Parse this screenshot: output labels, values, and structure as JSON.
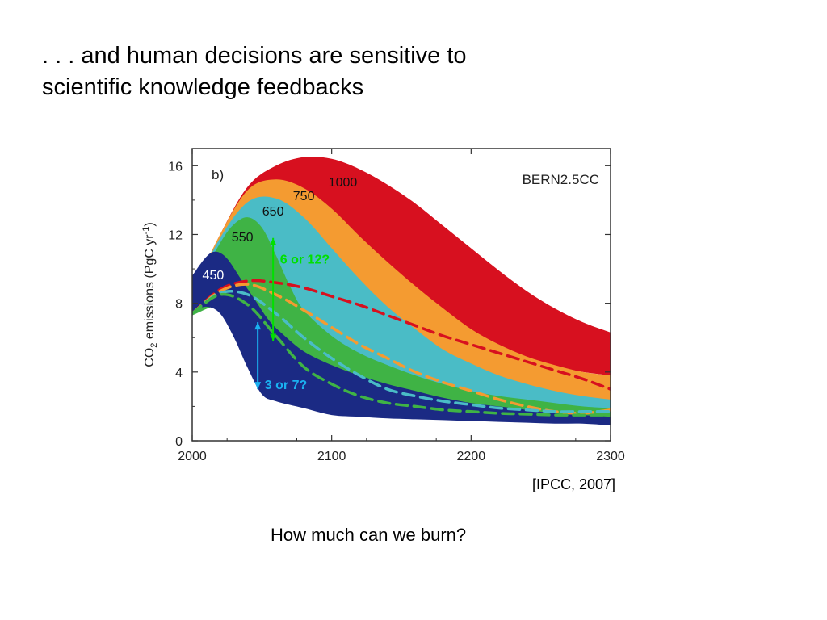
{
  "slide": {
    "title_lines": [
      ". . . and human decisions are sensitive to",
      "scientific knowledge feedbacks"
    ],
    "citation": "[IPCC, 2007]",
    "question": "How much can we burn?"
  },
  "chart_data": {
    "type": "area",
    "panel_label": "b)",
    "model_label": "BERN2.5CC",
    "ylabel_main": "CO",
    "ylabel_sub": "2",
    "ylabel_rest": " emissions (PgC yr",
    "ylabel_sup": "-1",
    "ylabel_end": ")",
    "xlim": [
      2000,
      2300
    ],
    "ylim": [
      0,
      17
    ],
    "x_ticks": [
      2000,
      2100,
      2200,
      2300
    ],
    "y_ticks": [
      0,
      4,
      8,
      12,
      16
    ],
    "x_tick_labels": [
      "2000",
      "2100",
      "2200",
      "2300"
    ],
    "y_tick_labels": [
      "0",
      "4",
      "8",
      "12",
      "16"
    ],
    "series": [
      {
        "name": "1000",
        "color": "#d7101f",
        "label_at": [
          2108,
          14.8
        ],
        "upper": [
          [
            2000,
            8.6
          ],
          [
            2020,
            12.0
          ],
          [
            2040,
            14.8
          ],
          [
            2060,
            16.0
          ],
          [
            2080,
            16.5
          ],
          [
            2100,
            16.4
          ],
          [
            2120,
            15.8
          ],
          [
            2140,
            14.9
          ],
          [
            2160,
            13.8
          ],
          [
            2180,
            12.5
          ],
          [
            2200,
            11.2
          ],
          [
            2220,
            9.9
          ],
          [
            2240,
            8.7
          ],
          [
            2260,
            7.7
          ],
          [
            2280,
            6.9
          ],
          [
            2300,
            6.3
          ]
        ],
        "lower": [
          [
            2000,
            7.3
          ],
          [
            2020,
            8.2
          ],
          [
            2040,
            9.0
          ],
          [
            2060,
            9.3
          ],
          [
            2080,
            8.8
          ],
          [
            2100,
            8.3
          ],
          [
            2120,
            7.9
          ],
          [
            2140,
            7.3
          ],
          [
            2160,
            6.7
          ],
          [
            2180,
            6.2
          ],
          [
            2200,
            5.7
          ],
          [
            2220,
            5.3
          ],
          [
            2240,
            4.8
          ],
          [
            2260,
            4.3
          ],
          [
            2280,
            4.0
          ],
          [
            2300,
            3.8
          ]
        ]
      },
      {
        "name": "750",
        "color": "#f49b31",
        "label_at": [
          2080,
          14.0
        ],
        "upper": [
          [
            2000,
            8.6
          ],
          [
            2020,
            12.0
          ],
          [
            2040,
            14.6
          ],
          [
            2060,
            15.2
          ],
          [
            2080,
            14.7
          ],
          [
            2100,
            13.5
          ],
          [
            2120,
            11.9
          ],
          [
            2140,
            10.4
          ],
          [
            2160,
            9.0
          ],
          [
            2180,
            7.7
          ],
          [
            2200,
            6.5
          ],
          [
            2220,
            5.6
          ],
          [
            2240,
            4.9
          ],
          [
            2260,
            4.4
          ],
          [
            2280,
            4.0
          ],
          [
            2300,
            3.8
          ]
        ],
        "lower": [
          [
            2000,
            7.3
          ],
          [
            2020,
            8.2
          ],
          [
            2040,
            8.8
          ],
          [
            2060,
            8.6
          ],
          [
            2080,
            7.8
          ],
          [
            2100,
            6.8
          ],
          [
            2120,
            5.8
          ],
          [
            2140,
            4.9
          ],
          [
            2160,
            4.0
          ],
          [
            2180,
            3.4
          ],
          [
            2200,
            2.9
          ],
          [
            2220,
            2.5
          ],
          [
            2240,
            2.1
          ],
          [
            2260,
            1.8
          ],
          [
            2280,
            1.6
          ],
          [
            2300,
            1.5
          ]
        ]
      },
      {
        "name": "650",
        "color": "#4abcc6",
        "label_at": [
          2058,
          13.1
        ],
        "upper": [
          [
            2000,
            8.6
          ],
          [
            2020,
            11.8
          ],
          [
            2040,
            13.9
          ],
          [
            2060,
            14.1
          ],
          [
            2080,
            13.0
          ],
          [
            2100,
            11.2
          ],
          [
            2120,
            9.4
          ],
          [
            2140,
            7.8
          ],
          [
            2160,
            6.5
          ],
          [
            2180,
            5.3
          ],
          [
            2200,
            4.5
          ],
          [
            2220,
            3.8
          ],
          [
            2240,
            3.3
          ],
          [
            2260,
            2.9
          ],
          [
            2280,
            2.6
          ],
          [
            2300,
            2.4
          ]
        ],
        "lower": [
          [
            2000,
            7.3
          ],
          [
            2020,
            8.0
          ],
          [
            2040,
            7.7
          ],
          [
            2060,
            6.6
          ],
          [
            2080,
            5.4
          ],
          [
            2100,
            4.4
          ],
          [
            2120,
            3.6
          ],
          [
            2140,
            3.0
          ],
          [
            2160,
            2.6
          ],
          [
            2180,
            2.3
          ],
          [
            2200,
            2.0
          ],
          [
            2220,
            1.8
          ],
          [
            2240,
            1.6
          ],
          [
            2260,
            1.5
          ],
          [
            2280,
            1.4
          ],
          [
            2300,
            1.3
          ]
        ]
      },
      {
        "name": "550",
        "color": "#3fb345",
        "label_at": [
          2036,
          11.6
        ],
        "upper": [
          [
            2000,
            8.6
          ],
          [
            2020,
            11.5
          ],
          [
            2030,
            12.6
          ],
          [
            2040,
            13.0
          ],
          [
            2050,
            12.4
          ],
          [
            2060,
            10.8
          ],
          [
            2070,
            9.0
          ],
          [
            2080,
            7.6
          ],
          [
            2100,
            6.1
          ],
          [
            2120,
            5.1
          ],
          [
            2140,
            4.4
          ],
          [
            2160,
            3.8
          ],
          [
            2180,
            3.3
          ],
          [
            2200,
            2.9
          ],
          [
            2220,
            2.6
          ],
          [
            2240,
            2.4
          ],
          [
            2260,
            2.2
          ],
          [
            2280,
            2.0
          ],
          [
            2300,
            1.9
          ]
        ],
        "lower": [
          [
            2000,
            7.3
          ],
          [
            2020,
            7.9
          ],
          [
            2030,
            7.2
          ],
          [
            2040,
            5.9
          ],
          [
            2050,
            4.5
          ],
          [
            2060,
            3.7
          ],
          [
            2080,
            3.0
          ],
          [
            2100,
            2.6
          ],
          [
            2120,
            2.3
          ],
          [
            2140,
            2.1
          ],
          [
            2160,
            1.9
          ],
          [
            2180,
            1.8
          ],
          [
            2200,
            1.6
          ],
          [
            2220,
            1.5
          ],
          [
            2240,
            1.4
          ],
          [
            2260,
            1.3
          ],
          [
            2280,
            1.25
          ],
          [
            2300,
            1.2
          ]
        ]
      },
      {
        "name": "450",
        "color": "#1b2a84",
        "label_at": [
          2015,
          9.4
        ],
        "upper": [
          [
            2000,
            9.6
          ],
          [
            2010,
            10.7
          ],
          [
            2017,
            11.0
          ],
          [
            2025,
            10.6
          ],
          [
            2035,
            9.4
          ],
          [
            2045,
            8.2
          ],
          [
            2055,
            7.0
          ],
          [
            2065,
            6.2
          ],
          [
            2080,
            5.2
          ],
          [
            2100,
            4.4
          ],
          [
            2120,
            3.8
          ],
          [
            2140,
            3.3
          ],
          [
            2160,
            2.9
          ],
          [
            2180,
            2.5
          ],
          [
            2200,
            2.2
          ],
          [
            2220,
            2.0
          ],
          [
            2240,
            1.8
          ],
          [
            2260,
            1.6
          ],
          [
            2280,
            1.5
          ],
          [
            2300,
            1.4
          ]
        ],
        "lower": [
          [
            2000,
            7.5
          ],
          [
            2010,
            7.8
          ],
          [
            2020,
            7.4
          ],
          [
            2030,
            6.0
          ],
          [
            2040,
            4.2
          ],
          [
            2050,
            2.7
          ],
          [
            2060,
            2.3
          ],
          [
            2080,
            1.9
          ],
          [
            2100,
            1.5
          ],
          [
            2120,
            1.4
          ],
          [
            2140,
            1.3
          ],
          [
            2160,
            1.25
          ],
          [
            2180,
            1.2
          ],
          [
            2200,
            1.15
          ],
          [
            2220,
            1.1
          ],
          [
            2240,
            1.05
          ],
          [
            2260,
            1.0
          ],
          [
            2280,
            1.0
          ],
          [
            2300,
            0.9
          ]
        ]
      }
    ],
    "dashed_lines": [
      {
        "color": "#d7101f",
        "points": [
          [
            2000,
            7.4
          ],
          [
            2020,
            8.8
          ],
          [
            2040,
            9.3
          ],
          [
            2060,
            9.2
          ],
          [
            2080,
            8.9
          ],
          [
            2100,
            8.4
          ],
          [
            2120,
            7.9
          ],
          [
            2140,
            7.3
          ],
          [
            2160,
            6.7
          ],
          [
            2180,
            6.1
          ],
          [
            2200,
            5.6
          ],
          [
            2220,
            5.1
          ],
          [
            2240,
            4.6
          ],
          [
            2260,
            4.1
          ],
          [
            2280,
            3.6
          ],
          [
            2300,
            3.0
          ]
        ]
      },
      {
        "color": "#f49b31",
        "points": [
          [
            2000,
            7.4
          ],
          [
            2020,
            8.7
          ],
          [
            2040,
            9.1
          ],
          [
            2060,
            8.5
          ],
          [
            2080,
            7.6
          ],
          [
            2100,
            6.6
          ],
          [
            2120,
            5.6
          ],
          [
            2140,
            4.8
          ],
          [
            2160,
            4.0
          ],
          [
            2180,
            3.4
          ],
          [
            2200,
            2.9
          ],
          [
            2220,
            2.4
          ],
          [
            2240,
            2.0
          ],
          [
            2260,
            1.7
          ],
          [
            2280,
            1.6
          ],
          [
            2300,
            1.8
          ]
        ]
      },
      {
        "color": "#4abcc6",
        "points": [
          [
            2000,
            7.4
          ],
          [
            2020,
            8.6
          ],
          [
            2040,
            8.5
          ],
          [
            2060,
            7.4
          ],
          [
            2080,
            6.0
          ],
          [
            2100,
            4.8
          ],
          [
            2120,
            3.8
          ],
          [
            2140,
            3.0
          ],
          [
            2160,
            2.6
          ],
          [
            2180,
            2.3
          ],
          [
            2200,
            2.1
          ],
          [
            2220,
            1.9
          ],
          [
            2240,
            1.8
          ],
          [
            2260,
            1.7
          ],
          [
            2280,
            1.7
          ],
          [
            2300,
            1.7
          ]
        ]
      },
      {
        "color": "#3fb345",
        "points": [
          [
            2000,
            7.4
          ],
          [
            2020,
            8.5
          ],
          [
            2040,
            7.9
          ],
          [
            2060,
            6.1
          ],
          [
            2080,
            4.3
          ],
          [
            2100,
            3.3
          ],
          [
            2120,
            2.6
          ],
          [
            2140,
            2.2
          ],
          [
            2160,
            2.0
          ],
          [
            2180,
            1.8
          ],
          [
            2200,
            1.7
          ],
          [
            2220,
            1.6
          ],
          [
            2240,
            1.55
          ],
          [
            2260,
            1.5
          ],
          [
            2280,
            1.5
          ],
          [
            2300,
            1.5
          ]
        ]
      }
    ],
    "annotations": [
      {
        "label": "6 or 12?",
        "color": "#00e000",
        "x": 2058,
        "y_from": 5.8,
        "y_to": 11.8,
        "text_at": [
          2063,
          10.3
        ]
      },
      {
        "label": "3 or 7?",
        "color": "#1ab0f0",
        "x": 2047,
        "y_from": 3.0,
        "y_to": 6.9,
        "text_at": [
          2052,
          3.0
        ]
      }
    ]
  }
}
